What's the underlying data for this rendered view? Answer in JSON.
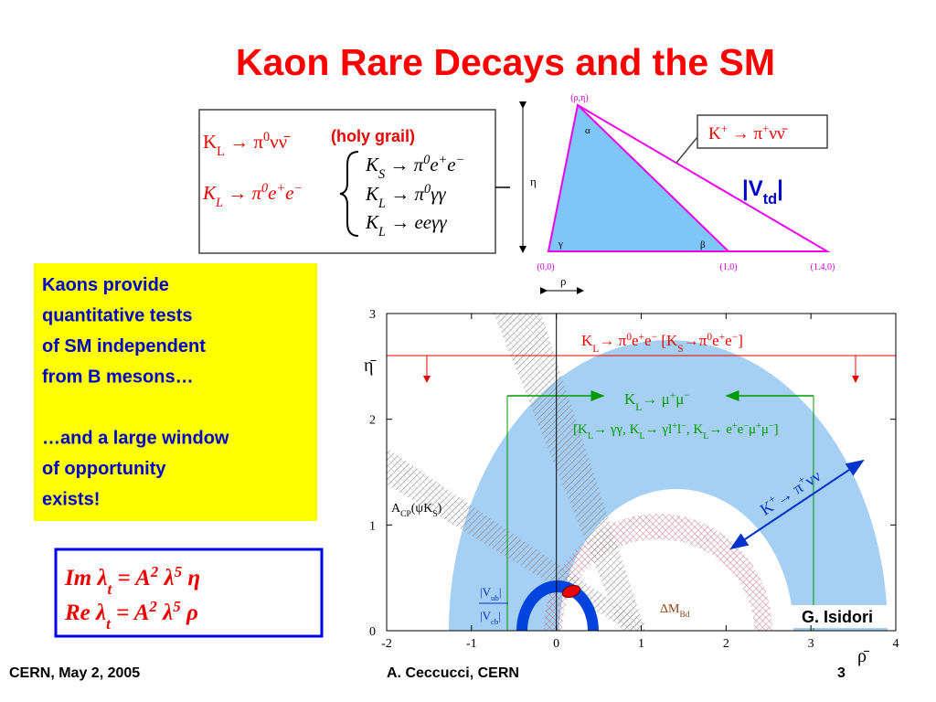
{
  "title": "Kaon Rare Decays and the SM",
  "decays": {
    "golden": [
      [
        "K"
      ],
      [
        "L",
        "sub"
      ],
      [
        " → π"
      ],
      [
        "0",
        "sup"
      ],
      [
        "νν̄"
      ]
    ],
    "holy": "(holy grail)",
    "ee": [
      [
        "K"
      ],
      [
        "L",
        "sub"
      ],
      [
        " → π"
      ],
      [
        "0",
        "sup"
      ],
      [
        "e"
      ],
      [
        "+",
        "sup"
      ],
      [
        "e"
      ],
      [
        "−",
        "sup"
      ]
    ],
    "backgrounds": [
      [
        [
          "K"
        ],
        [
          "S",
          "sub"
        ],
        [
          " → π"
        ],
        [
          "0",
          "sup"
        ],
        [
          "e"
        ],
        [
          "+",
          "sup"
        ],
        [
          "e"
        ],
        [
          "−",
          "sup"
        ]
      ],
      [
        [
          "K"
        ],
        [
          "L",
          "sub"
        ],
        [
          " → π"
        ],
        [
          "0",
          "sup"
        ],
        [
          "γγ"
        ]
      ],
      [
        [
          "K"
        ],
        [
          "L",
          "sub"
        ],
        [
          " → eeγγ"
        ]
      ]
    ]
  },
  "triangle": {
    "apex": "(ρ,η)",
    "alpha": "α",
    "gamma": "γ",
    "beta": "β",
    "origin": "(0,0)",
    "one": "(1,0)",
    "far": "(1.4,0)",
    "eta": "η",
    "rho": "ρ",
    "kplus": [
      [
        "K"
      ],
      [
        "+",
        "sup"
      ],
      [
        " → π"
      ],
      [
        "+",
        "sup"
      ],
      [
        "νν̄"
      ]
    ],
    "vtd": [
      [
        "|V"
      ],
      [
        "td",
        "sub"
      ],
      [
        "|"
      ]
    ]
  },
  "note": {
    "paragraphs": [
      [
        "Kaons provide",
        "quantitative tests",
        "of SM independent",
        "from B mesons…"
      ],
      [
        "…and a large window",
        "of opportunity",
        "exists!"
      ]
    ]
  },
  "formula": [
    [
      [
        "Im "
      ],
      [
        "λ"
      ],
      [
        "t",
        "sub"
      ],
      [
        " = A"
      ],
      [
        "2",
        "sup"
      ],
      [
        " λ"
      ],
      [
        "5",
        "sup"
      ],
      [
        " η"
      ]
    ],
    [
      [
        "Re "
      ],
      [
        "λ"
      ],
      [
        "t",
        "sub"
      ],
      [
        " = A"
      ],
      [
        "2",
        "sup"
      ],
      [
        " λ"
      ],
      [
        "5",
        "sup"
      ],
      [
        " ρ"
      ]
    ]
  ],
  "plot": {
    "xlim": [
      -2,
      4
    ],
    "ylim": [
      0,
      3
    ],
    "xticks": [
      -2,
      -1,
      0,
      1,
      2,
      3,
      4
    ],
    "yticks": [
      0,
      1,
      2,
      3
    ],
    "xlabel": "ρ̄",
    "ylabel": "η̄",
    "kl_ee": [
      [
        "K"
      ],
      [
        "L",
        "sub"
      ],
      [
        "→ π"
      ],
      [
        "0",
        "sup"
      ],
      [
        "e"
      ],
      [
        "+",
        "sup"
      ],
      [
        "e"
      ],
      [
        "−",
        "sup"
      ],
      [
        "  [K"
      ],
      [
        "S",
        "sub"
      ],
      [
        "→π"
      ],
      [
        "0",
        "sup"
      ],
      [
        "e"
      ],
      [
        "+",
        "sup"
      ],
      [
        "e"
      ],
      [
        "−",
        "sup"
      ],
      [
        "]"
      ]
    ],
    "kl_mumu": [
      [
        "K"
      ],
      [
        "L",
        "sub"
      ],
      [
        "→ μ"
      ],
      [
        "+",
        "sup"
      ],
      [
        "μ"
      ],
      [
        "−",
        "sup"
      ]
    ],
    "kl_other": [
      [
        "[K"
      ],
      [
        "L",
        "sub"
      ],
      [
        "→ γγ, K"
      ],
      [
        "L",
        "sub"
      ],
      [
        "→ γl"
      ],
      [
        "+",
        "sup"
      ],
      [
        "l"
      ],
      [
        "−",
        "sup"
      ],
      [
        ", K"
      ],
      [
        "L",
        "sub"
      ],
      [
        "→ e"
      ],
      [
        "+",
        "sup"
      ],
      [
        "e"
      ],
      [
        "−",
        "sup"
      ],
      [
        "μ"
      ],
      [
        "+",
        "sup"
      ],
      [
        "μ"
      ],
      [
        "−",
        "sup"
      ],
      [
        "]"
      ]
    ],
    "kplus": [
      [
        "K"
      ],
      [
        "+",
        "sup"
      ],
      [
        "→ π"
      ],
      [
        "+",
        "sup"
      ],
      [
        "νν"
      ]
    ],
    "acp": [
      [
        "A"
      ],
      [
        "CP",
        "sub"
      ],
      [
        "(ψK"
      ],
      [
        "S",
        "sub"
      ],
      [
        ")"
      ]
    ],
    "vub": [
      [
        "|V"
      ],
      [
        "ub",
        "sub"
      ],
      [
        "|"
      ]
    ],
    "vcb": [
      [
        "|V"
      ],
      [
        "cb",
        "sub"
      ],
      [
        "|"
      ]
    ],
    "dmb": [
      [
        "ΔM"
      ],
      [
        "B",
        "sub"
      ],
      [
        "d",
        "sub"
      ]
    ],
    "credit": "G. Isidori"
  },
  "footer": {
    "left": "CERN, May 2, 2005",
    "center": "A. Ceccucci, CERN",
    "page": 3
  }
}
